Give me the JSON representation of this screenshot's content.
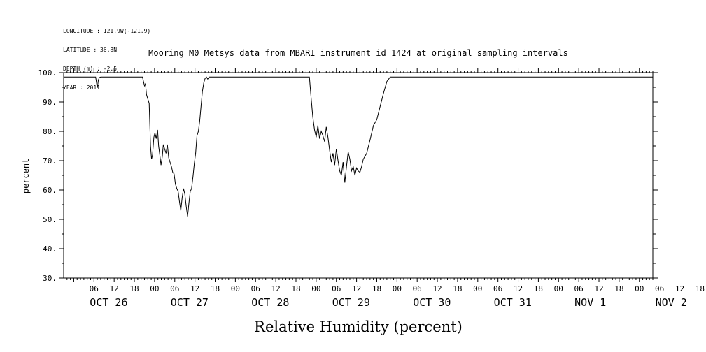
{
  "header": {
    "longitude": "LONGITUDE : 121.9W(-121.9)",
    "latitude": "LATITUDE : 36.8N",
    "depth": "DEPTH (m) : -2.5",
    "year": "YEAR : 2011"
  },
  "chart_data": {
    "type": "line",
    "title": "Mooring M0 Metsys data from MBARI instrument id 1424 at original sampling intervals",
    "xlabel": "Relative Humidity (percent)",
    "ylabel": "percent",
    "ylim": [
      30,
      100
    ],
    "yticks": [
      30,
      40,
      50,
      60,
      70,
      80,
      90,
      100
    ],
    "ytick_labels": [
      "30.",
      "40.",
      "50.",
      "60.",
      "70.",
      "80.",
      "90.",
      "100."
    ],
    "xlim": [
      "2011-10-25 21:00",
      "2011-11-02 04:00"
    ],
    "hour_tick_labels": [
      "06",
      "12",
      "18",
      "00",
      "06",
      "12",
      "18",
      "00",
      "06",
      "12",
      "18",
      "00",
      "06",
      "12",
      "18",
      "00",
      "06",
      "12",
      "18",
      "00",
      "06",
      "12",
      "18",
      "00",
      "06",
      "12",
      "18",
      "00",
      "06",
      "12",
      "18",
      "00"
    ],
    "day_labels": [
      "OCT 26",
      "OCT 27",
      "OCT 28",
      "OCT 29",
      "OCT 30",
      "OCT 31",
      "NOV  1",
      "NOV  2"
    ],
    "grid": false,
    "series": [
      {
        "color": "#000000",
        "x_hours_since_oct26": [
          -3.0,
          6.5,
          7.0,
          7.3,
          7.6,
          8.0,
          20.4,
          21.0,
          21.3,
          21.6,
          22.0,
          22.4,
          22.8,
          23.1,
          23.4,
          23.8,
          24.1,
          24.5,
          24.9,
          25.2,
          25.5,
          25.9,
          26.3,
          26.6,
          27.0,
          27.4,
          27.8,
          28.2,
          28.6,
          29.0,
          29.4,
          29.8,
          30.2,
          30.6,
          31.0,
          31.4,
          31.8,
          32.2,
          32.6,
          33.0,
          33.4,
          33.8,
          34.2,
          34.6,
          35.0,
          35.4,
          35.8,
          36.2,
          36.6,
          37.0,
          37.4,
          37.8,
          38.2,
          38.6,
          39.0,
          39.4,
          39.8,
          40.2,
          40.6,
          41.0,
          41.4,
          41.8,
          42.2,
          42.6,
          43.0,
          44.0,
          45.0,
          46.0,
          47.0,
          48.0,
          49.0,
          50.0,
          51.0,
          52.0,
          53.0,
          54.0,
          55.0,
          56.0,
          57.0,
          58.0,
          59.0,
          60.0,
          61.0,
          62.0,
          63.0,
          64.0,
          65.0,
          66.0,
          67.0,
          68.0,
          69.0,
          70.0,
          70.5,
          71.0,
          71.5,
          72.0,
          72.5,
          73.0,
          73.5,
          74.0,
          74.5,
          75.0,
          75.5,
          76.0,
          76.5,
          77.0,
          77.5,
          78.0,
          78.5,
          79.0,
          79.5,
          80.0,
          80.5,
          81.0,
          81.5,
          82.0,
          82.5,
          83.0,
          83.5,
          84.0,
          84.5,
          85.0,
          85.5,
          86.0,
          87.0,
          88.0,
          89.0,
          90.0,
          91.0,
          92.0,
          93.0,
          94.0,
          95.0,
          96.0,
          97.0,
          98.0,
          99.0,
          100.0,
          100.5,
          101.0,
          101.5,
          102.0,
          102.5,
          103.0,
          103.5,
          104.0,
          104.5,
          105.0,
          105.5,
          106.0,
          106.5,
          107.0,
          107.5,
          108.0,
          108.5,
          109.0,
          109.5,
          110.0,
          110.5,
          111.0,
          111.5,
          112.0,
          112.5,
          113.0,
          113.5,
          114.0,
          114.5,
          115.0,
          116.0,
          117.0,
          118.0,
          119.0,
          120.0,
          121.0,
          122.0,
          123.0,
          124.0,
          125.0,
          126.0,
          127.0,
          128.0,
          129.0,
          130.0,
          131.0,
          132.0,
          133.0,
          134.0,
          135.0,
          135.5,
          136.0,
          136.5,
          137.0,
          137.5,
          138.0,
          138.5,
          139.0,
          139.5,
          140.0,
          140.5,
          141.0,
          141.5,
          142.0,
          142.5,
          143.0,
          143.5,
          144.0,
          144.5,
          145.0,
          146.0,
          148.0,
          152.0,
          160.0,
          170.0,
          180.0,
          190.0,
          200.0,
          210.0,
          220.0,
          230.0,
          235.0,
          236.0,
          236.5,
          237.0,
          237.5,
          238.0,
          238.5,
          239.0,
          239.5,
          240.0,
          240.5,
          241.0,
          241.5,
          242.0,
          242.5,
          243.0,
          243.5,
          244.0,
          244.5,
          245.0,
          245.5,
          246.0,
          246.5,
          247.0,
          247.5,
          248.0,
          248.5,
          249.0,
          249.5,
          250.0
        ],
        "values": [
          98.5,
          98.5,
          94.8,
          97.5,
          98.3,
          98.5,
          98.5,
          95.5,
          96.2,
          92.5,
          91.0,
          89.5,
          75.0,
          70.5,
          72.0,
          78.0,
          79.5,
          77.5,
          80.5,
          75.0,
          72.5,
          68.5,
          71.5,
          75.5,
          74.0,
          72.5,
          75.5,
          71.0,
          69.5,
          68.0,
          66.0,
          65.5,
          62.0,
          60.5,
          59.5,
          56.0,
          53.0,
          57.5,
          60.5,
          58.5,
          54.5,
          51.0,
          55.5,
          59.5,
          60.5,
          64.5,
          69.0,
          72.5,
          78.5,
          80.0,
          83.5,
          88.5,
          93.5,
          96.5,
          98.0,
          98.5,
          97.8,
          98.5,
          98.5,
          98.5,
          98.5,
          98.5,
          98.5,
          98.5,
          98.5,
          98.5,
          98.5,
          98.5,
          98.5,
          98.5,
          98.5,
          98.5,
          98.5,
          98.5,
          98.5,
          98.5,
          98.5,
          98.5,
          98.5,
          98.5,
          98.5,
          98.5,
          98.5,
          98.5,
          98.5,
          98.5,
          98.5,
          98.5,
          98.5,
          98.5,
          98.5,
          98.5,
          91.5,
          85.0,
          80.5,
          78.0,
          82.0,
          77.5,
          80.0,
          78.5,
          76.5,
          81.5,
          78.0,
          73.5,
          69.5,
          72.5,
          68.5,
          74.0,
          70.0,
          66.5,
          65.0,
          69.5,
          62.5,
          68.0,
          73.0,
          70.5,
          66.5,
          68.0,
          65.0,
          67.5,
          66.5,
          66.0,
          68.0,
          70.5,
          72.5,
          77.0,
          82.0,
          84.0,
          88.5,
          93.0,
          97.0,
          98.5,
          98.5,
          98.5,
          98.5,
          98.5,
          98.5,
          98.5,
          98.5,
          98.5,
          98.5,
          98.5,
          98.5,
          98.5,
          98.5,
          98.5,
          98.5,
          98.5,
          98.5,
          98.5,
          98.5,
          98.5,
          98.5,
          98.5,
          98.5,
          98.5,
          98.5,
          98.5,
          98.5,
          98.5,
          98.5,
          98.5,
          98.5,
          98.5,
          98.5,
          98.5,
          98.5,
          98.5,
          98.5,
          98.5,
          98.5,
          98.5,
          98.5,
          98.5,
          98.5,
          98.5,
          98.5,
          98.5,
          98.5,
          98.5,
          98.5,
          98.5,
          98.5,
          98.5,
          98.5,
          98.5,
          98.5,
          98.5,
          98.5,
          98.5,
          98.5,
          98.5,
          98.5,
          98.5,
          98.5,
          98.5,
          98.5,
          98.5,
          98.5,
          98.5,
          98.5,
          98.5,
          98.5,
          98.5,
          98.5,
          98.5,
          98.5,
          98.5,
          98.5,
          98.5,
          98.5,
          98.5,
          98.5,
          98.5,
          98.5,
          98.5,
          98.5,
          98.5,
          98.5,
          98.5,
          98.5,
          98.5,
          98.5,
          98.5,
          98.5,
          98.5,
          98.5,
          98.5,
          98.5,
          98.5,
          98.5,
          98.5,
          98.5,
          98.5,
          98.5,
          98.5,
          98.5,
          98.5,
          98.5
        ]
      }
    ]
  }
}
